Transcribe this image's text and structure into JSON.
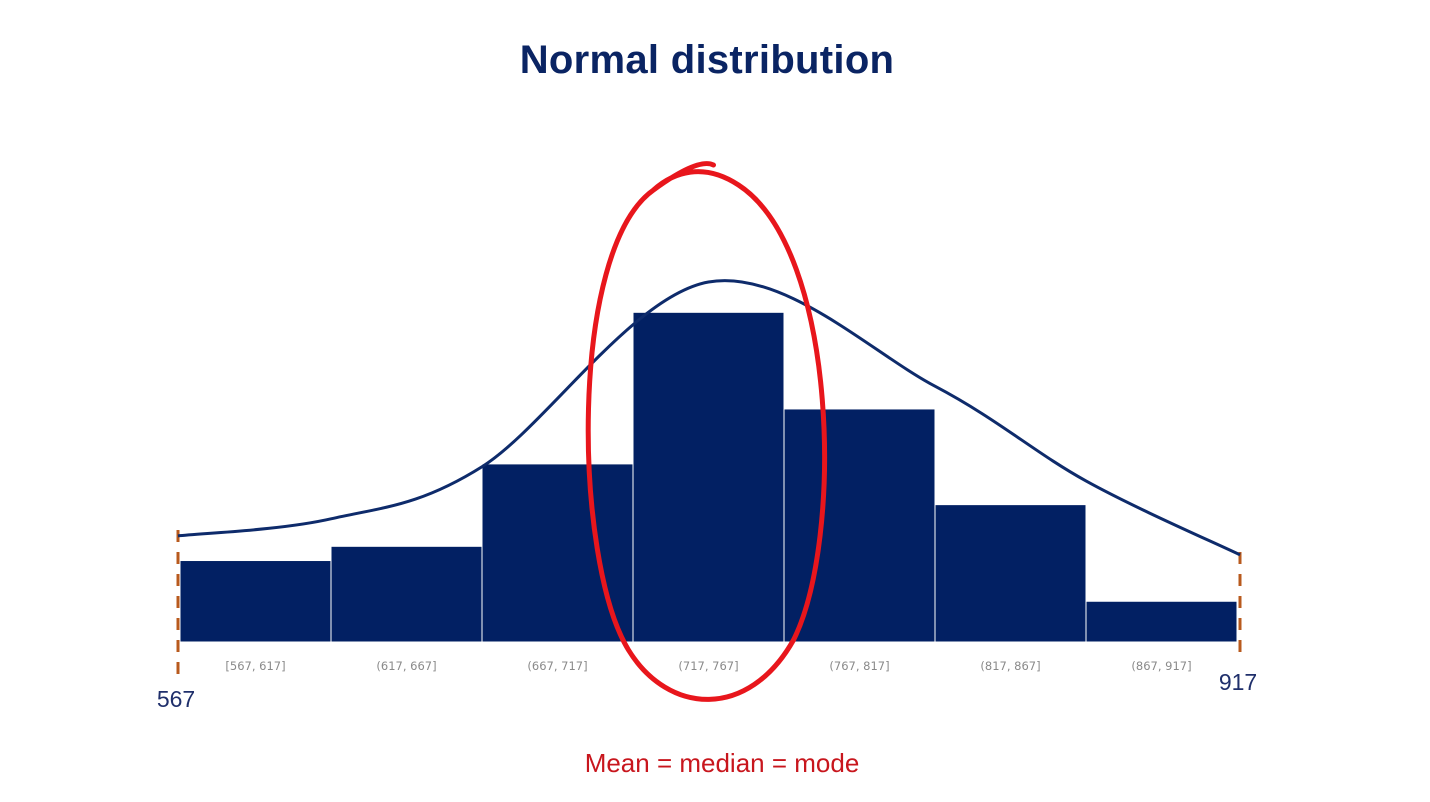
{
  "title": "Normal distribution",
  "caption": "Mean = median = mode",
  "chart_data": {
    "type": "bar",
    "title": "Normal distribution",
    "categories": [
      "[567, 617]",
      "(617, 667]",
      "(667, 717]",
      "(717, 767]",
      "(767, 817]",
      "(817, 867]",
      "(867, 917]"
    ],
    "values": [
      86,
      101,
      188,
      348,
      246,
      145,
      43
    ],
    "ylim": [
      0,
      380
    ],
    "x_range": [
      567,
      917
    ],
    "range_labels": {
      "min": "567",
      "max": "917"
    },
    "curve": {
      "type": "normal",
      "mean": 742,
      "values_at_points": {
        "567": 112,
        "617": 130,
        "667": 185,
        "742": 380,
        "817": 270,
        "867": 170,
        "917": 92
      }
    },
    "annotation": {
      "type": "circle",
      "target_category": "(717, 767]"
    },
    "grid": false,
    "legend": "none",
    "colors": {
      "bars": "#022063",
      "bar_border": "#ffffff",
      "curve": "#0e2b6b",
      "annotation": "#e8161c",
      "range_marker": "#b85a1d",
      "title": "#0a2463",
      "caption": "#c8161d"
    }
  }
}
